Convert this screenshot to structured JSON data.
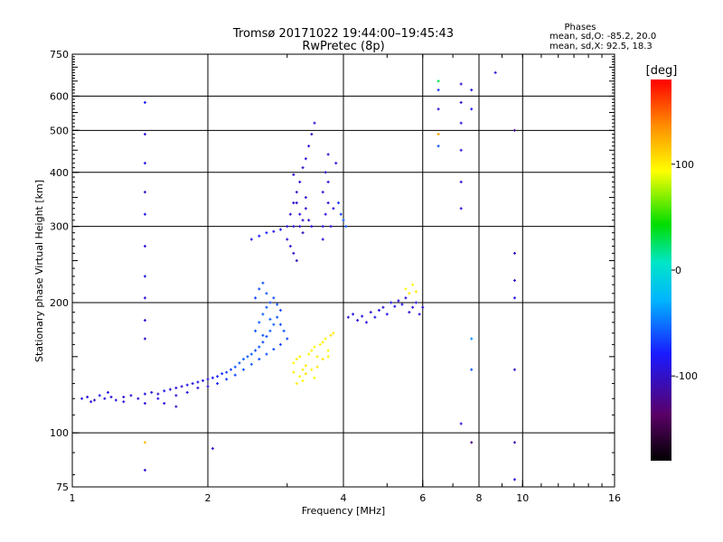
{
  "chart_data": {
    "type": "scatter",
    "title": "Tromsø 20171022 19:44:00–19:45:43",
    "subtitle": "RwPretec (8p)",
    "xlabel": "Frequency [MHz]",
    "ylabel": "Stationary phase Virtual Height [km]",
    "x_scale": "log",
    "y_scale": "log",
    "xlim": [
      1,
      16
    ],
    "ylim": [
      75,
      750
    ],
    "x_ticks": [
      1,
      2,
      4,
      6,
      8,
      10,
      16
    ],
    "x_tick_labels": [
      "1",
      "2",
      "4",
      "6",
      "8",
      "10",
      "16"
    ],
    "y_ticks": [
      75,
      100,
      200,
      300,
      400,
      500,
      600,
      750
    ],
    "y_tick_labels": [
      "75",
      "100",
      "200",
      "300",
      "400",
      "500",
      "600",
      "750"
    ],
    "grid": true,
    "legend": {
      "title": "Phases",
      "line_o": "mean, sd,O: -85.2, 20.0",
      "line_x": "mean, sd,X:  92.5, 18.3"
    },
    "colorbar": {
      "label": "[deg]",
      "range": [
        -180,
        180
      ],
      "ticks": [
        100,
        0,
        -100
      ],
      "tick_labels": [
        "100",
        "0",
        "-100"
      ]
    },
    "series": [
      {
        "points": [
          [
            1.05,
            120,
            -95
          ],
          [
            1.08,
            121,
            -90
          ],
          [
            1.12,
            119,
            -100
          ],
          [
            1.15,
            122,
            -85
          ],
          [
            1.18,
            120,
            -92
          ],
          [
            1.22,
            121,
            -98
          ],
          [
            1.25,
            119,
            -88
          ],
          [
            1.3,
            121,
            -94
          ],
          [
            1.35,
            122,
            -90
          ],
          [
            1.4,
            120,
            -96
          ],
          [
            1.45,
            123,
            -88
          ],
          [
            1.5,
            124,
            -92
          ],
          [
            1.55,
            123,
            -98
          ],
          [
            1.6,
            125,
            -86
          ],
          [
            1.65,
            126,
            -94
          ],
          [
            1.7,
            127,
            -90
          ],
          [
            1.75,
            128,
            -96
          ],
          [
            1.8,
            129,
            -88
          ],
          [
            1.85,
            130,
            -92
          ],
          [
            1.9,
            131,
            -90
          ],
          [
            1.95,
            132,
            -86
          ],
          [
            2.0,
            133,
            -92
          ],
          [
            2.05,
            134,
            -80
          ],
          [
            2.1,
            135,
            -75
          ],
          [
            2.15,
            137,
            -72
          ],
          [
            2.2,
            138,
            -68
          ],
          [
            2.25,
            140,
            -65
          ],
          [
            2.3,
            142,
            -60
          ],
          [
            2.35,
            145,
            -58
          ],
          [
            2.4,
            148,
            -55
          ],
          [
            2.45,
            150,
            -60
          ],
          [
            2.5,
            152,
            -58
          ],
          [
            2.55,
            155,
            -62
          ],
          [
            2.6,
            158,
            -60
          ],
          [
            2.65,
            162,
            -65
          ],
          [
            2.7,
            167,
            -62
          ],
          [
            2.75,
            172,
            -58
          ],
          [
            2.8,
            178,
            -55
          ],
          [
            2.85,
            185,
            -60
          ],
          [
            2.9,
            192,
            -64
          ],
          [
            1.1,
            118,
            -94
          ],
          [
            1.2,
            124,
            -88
          ],
          [
            1.3,
            118,
            -96
          ],
          [
            1.45,
            117,
            -92
          ],
          [
            1.55,
            120,
            -90
          ],
          [
            1.6,
            117,
            -94
          ],
          [
            1.7,
            122,
            -92
          ],
          [
            1.8,
            124,
            -88
          ],
          [
            1.9,
            127,
            -95
          ],
          [
            2.0,
            128,
            -90
          ],
          [
            2.1,
            130,
            -76
          ],
          [
            2.2,
            133,
            -70
          ],
          [
            2.3,
            136,
            -66
          ],
          [
            2.4,
            140,
            -60
          ],
          [
            2.5,
            144,
            -58
          ],
          [
            2.6,
            148,
            -62
          ],
          [
            2.7,
            152,
            -60
          ],
          [
            2.8,
            156,
            -62
          ],
          [
            2.9,
            160,
            -66
          ],
          [
            3.0,
            165,
            -64
          ]
        ]
      },
      {
        "points": [
          [
            2.55,
            205,
            -66
          ],
          [
            2.6,
            215,
            -62
          ],
          [
            2.65,
            222,
            -60
          ],
          [
            2.7,
            210,
            -58
          ],
          [
            2.75,
            200,
            -64
          ],
          [
            2.7,
            195,
            -60
          ],
          [
            2.65,
            188,
            -56
          ],
          [
            2.8,
            205,
            -62
          ],
          [
            2.85,
            198,
            -60
          ],
          [
            2.6,
            180,
            -58
          ],
          [
            2.75,
            183,
            -55
          ],
          [
            2.9,
            178,
            -62
          ],
          [
            2.95,
            172,
            -60
          ],
          [
            2.55,
            172,
            -62
          ],
          [
            2.65,
            168,
            -60
          ]
        ]
      },
      {
        "points": [
          [
            2.5,
            280,
            -88
          ],
          [
            2.6,
            285,
            -82
          ],
          [
            2.7,
            290,
            -78
          ],
          [
            2.8,
            292,
            -90
          ],
          [
            2.9,
            295,
            -85
          ],
          [
            3.0,
            300,
            -95
          ],
          [
            3.05,
            320,
            -100
          ],
          [
            3.1,
            340,
            -98
          ],
          [
            3.15,
            360,
            -102
          ],
          [
            3.2,
            380,
            -96
          ],
          [
            3.25,
            410,
            -100
          ],
          [
            3.3,
            430,
            -94
          ],
          [
            3.35,
            460,
            -98
          ],
          [
            3.4,
            490,
            -102
          ],
          [
            3.45,
            520,
            -96
          ],
          [
            3.0,
            280,
            -96
          ],
          [
            3.05,
            270,
            -100
          ],
          [
            3.1,
            260,
            -98
          ],
          [
            3.15,
            250,
            -102
          ],
          [
            3.2,
            300,
            -100
          ],
          [
            3.25,
            310,
            -94
          ],
          [
            3.3,
            330,
            -98
          ],
          [
            3.1,
            300,
            -92
          ],
          [
            3.2,
            320,
            -96
          ],
          [
            3.15,
            340,
            -100
          ],
          [
            3.3,
            350,
            -98
          ],
          [
            3.35,
            310,
            -100
          ],
          [
            3.25,
            290,
            -102
          ],
          [
            3.4,
            300,
            -94
          ],
          [
            3.1,
            395,
            -100
          ],
          [
            3.6,
            300,
            -90
          ],
          [
            3.65,
            320,
            -94
          ],
          [
            3.7,
            340,
            -96
          ],
          [
            3.6,
            360,
            -90
          ],
          [
            3.7,
            380,
            -92
          ],
          [
            3.65,
            400,
            -100
          ],
          [
            3.7,
            440,
            -96
          ],
          [
            3.6,
            280,
            -94
          ],
          [
            3.75,
            300,
            -92
          ],
          [
            3.8,
            330,
            -90
          ],
          [
            3.9,
            340,
            -70
          ],
          [
            3.95,
            320,
            -68
          ],
          [
            4.0,
            310,
            -60
          ],
          [
            4.05,
            300,
            -58
          ],
          [
            3.85,
            420,
            -92
          ]
        ]
      },
      {
        "points": [
          [
            3.1,
            145,
            95
          ],
          [
            3.15,
            148,
            100
          ],
          [
            3.2,
            150,
            92
          ],
          [
            3.25,
            140,
            98
          ],
          [
            3.3,
            143,
            102
          ],
          [
            3.35,
            152,
            96
          ],
          [
            3.4,
            155,
            100
          ],
          [
            3.45,
            158,
            94
          ],
          [
            3.5,
            150,
            102
          ],
          [
            3.55,
            160,
            96
          ],
          [
            3.6,
            162,
            100
          ],
          [
            3.65,
            165,
            98
          ],
          [
            3.7,
            155,
            92
          ],
          [
            3.75,
            168,
            104
          ],
          [
            3.8,
            170,
            100
          ],
          [
            3.1,
            138,
            100
          ],
          [
            3.2,
            135,
            96
          ],
          [
            3.3,
            137,
            104
          ],
          [
            3.4,
            140,
            98
          ],
          [
            3.5,
            142,
            102
          ],
          [
            3.15,
            130,
            100
          ],
          [
            3.25,
            132,
            96
          ],
          [
            3.45,
            134,
            92
          ],
          [
            3.6,
            148,
            104
          ],
          [
            3.7,
            150,
            98
          ]
        ]
      },
      {
        "points": [
          [
            4.1,
            185,
            -92
          ],
          [
            4.2,
            188,
            -88
          ],
          [
            4.3,
            182,
            -96
          ],
          [
            4.4,
            186,
            -90
          ],
          [
            4.5,
            180,
            -94
          ],
          [
            4.6,
            190,
            -92
          ],
          [
            4.7,
            185,
            -86
          ],
          [
            4.8,
            192,
            -90
          ],
          [
            4.9,
            195,
            -94
          ],
          [
            5.0,
            188,
            -88
          ],
          [
            5.1,
            200,
            -90
          ],
          [
            5.2,
            196,
            -86
          ],
          [
            5.3,
            202,
            -92
          ],
          [
            5.4,
            198,
            -88
          ],
          [
            5.5,
            205,
            -94
          ],
          [
            5.6,
            190,
            -92
          ],
          [
            5.7,
            195,
            -96
          ],
          [
            5.8,
            200,
            -88
          ],
          [
            5.9,
            188,
            -94
          ],
          [
            6.0,
            195,
            -92
          ],
          [
            5.5,
            215,
            95
          ],
          [
            5.6,
            210,
            100
          ],
          [
            5.7,
            220,
            96
          ],
          [
            5.8,
            212,
            102
          ]
        ]
      },
      {
        "points": [
          [
            1.45,
            580,
            -80
          ],
          [
            1.45,
            490,
            -94
          ],
          [
            1.45,
            420,
            -88
          ],
          [
            1.45,
            360,
            -96
          ],
          [
            1.45,
            320,
            -90
          ],
          [
            1.45,
            270,
            -94
          ],
          [
            1.45,
            230,
            -88
          ],
          [
            1.45,
            205,
            -96
          ],
          [
            1.45,
            182,
            -92
          ],
          [
            1.45,
            165,
            -98
          ],
          [
            1.45,
            95,
            120
          ],
          [
            1.45,
            82,
            -98
          ],
          [
            6.5,
            650,
            30
          ],
          [
            6.5,
            620,
            -70
          ],
          [
            6.5,
            560,
            -94
          ],
          [
            6.5,
            490,
            130
          ],
          [
            6.5,
            460,
            -60
          ],
          [
            7.3,
            640,
            -94
          ],
          [
            7.3,
            580,
            -98
          ],
          [
            7.3,
            520,
            -90
          ],
          [
            7.3,
            450,
            -92
          ],
          [
            7.3,
            380,
            -96
          ],
          [
            7.3,
            330,
            -94
          ],
          [
            7.3,
            105,
            -92
          ],
          [
            7.7,
            620,
            -88
          ],
          [
            7.7,
            560,
            -80
          ],
          [
            7.7,
            165,
            -40
          ],
          [
            7.7,
            140,
            -60
          ],
          [
            7.7,
            95,
            -130
          ],
          [
            9.6,
            500,
            -120
          ],
          [
            9.6,
            260,
            -94
          ],
          [
            9.6,
            225,
            -96
          ],
          [
            9.6,
            205,
            -90
          ],
          [
            9.6,
            140,
            -98
          ],
          [
            9.6,
            95,
            -110
          ],
          [
            9.6,
            78,
            -92
          ],
          [
            8.7,
            680,
            -94
          ],
          [
            2.05,
            92,
            -96
          ],
          [
            1.7,
            115,
            -100
          ]
        ]
      }
    ]
  }
}
